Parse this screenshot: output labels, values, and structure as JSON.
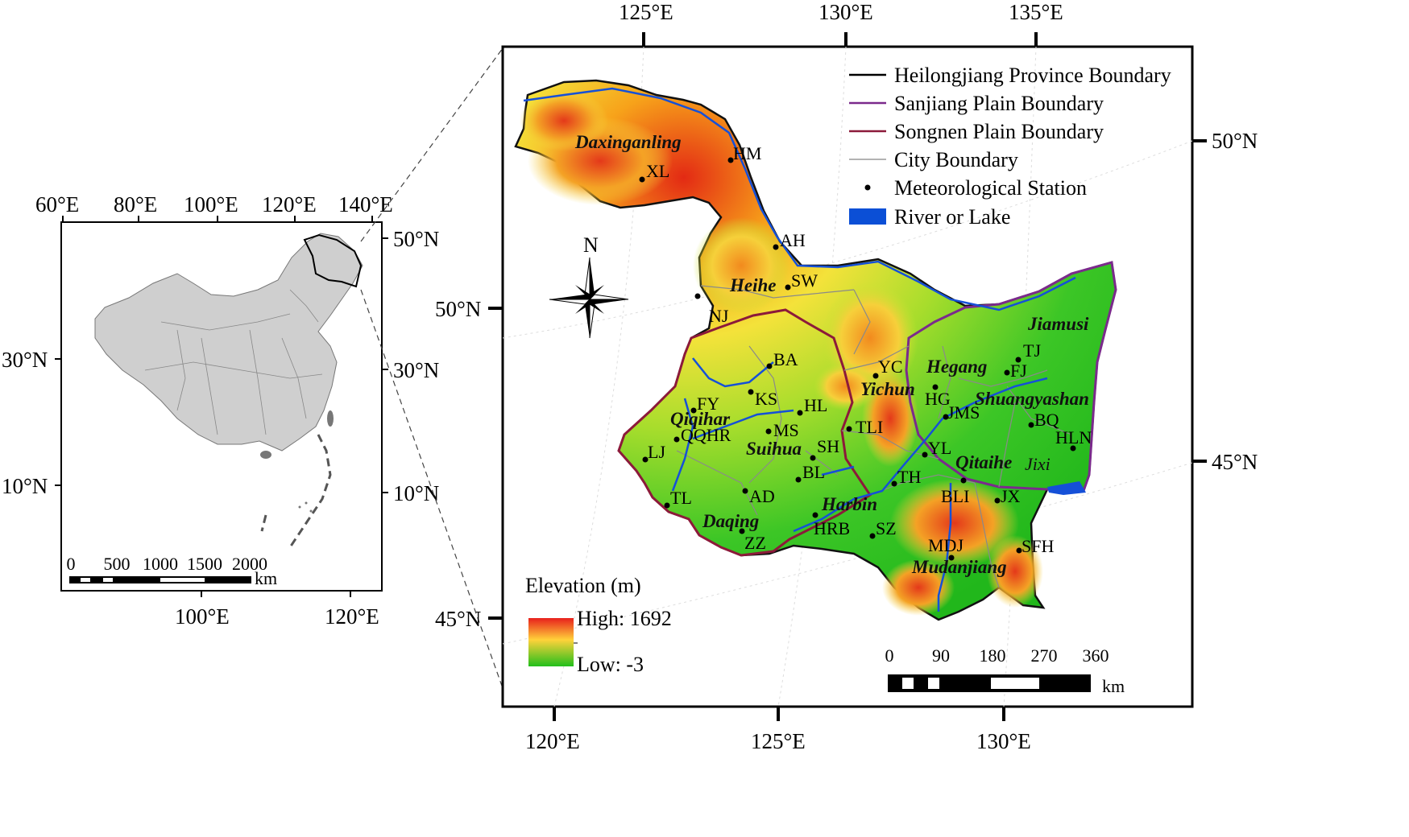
{
  "inset": {
    "top_ticks": [
      "60°E",
      "80°E",
      "100°E",
      "120°E",
      "140°E"
    ],
    "bottom_ticks": [
      "100°E",
      "120°E"
    ],
    "left_ticks": [
      "30°N",
      "10°N"
    ],
    "right_ticks": [
      "50°N",
      "30°N",
      "10°N"
    ],
    "scale_labels": [
      "0",
      "500",
      "1000",
      "1500",
      "2000"
    ],
    "scale_unit": "km"
  },
  "main": {
    "top_ticks": [
      "125°E",
      "130°E",
      "135°E"
    ],
    "bottom_ticks": [
      "120°E",
      "125°E",
      "130°E"
    ],
    "left_ticks": [
      "50°N",
      "45°N"
    ],
    "right_ticks": [
      "50°N",
      "45°N"
    ],
    "north_label": "N",
    "legend": [
      {
        "label": "Heilongjiang Province Boundary",
        "color": "#000000",
        "kind": "line"
      },
      {
        "label": "Sanjiang Plain Boundary",
        "color": "#7b2a8c",
        "kind": "line"
      },
      {
        "label": "Songnen Plain Boundary",
        "color": "#8c1a3a",
        "kind": "line"
      },
      {
        "label": "City Boundary",
        "color": "#9a9a9a",
        "kind": "line"
      },
      {
        "label": "Meteorological Station",
        "color": "#000000",
        "kind": "dot"
      },
      {
        "label": "River or Lake",
        "color": "#0b4fd6",
        "kind": "box"
      }
    ],
    "elevation": {
      "title": "Elevation (m)",
      "high": "High: 1692",
      "low": "Low: -3"
    },
    "scale_labels": [
      "0",
      "90",
      "180",
      "270",
      "360"
    ],
    "scale_unit": "km",
    "stations": [
      {
        "name": "XL"
      },
      {
        "name": "HM"
      },
      {
        "name": "AH"
      },
      {
        "name": "SW"
      },
      {
        "name": "NJ"
      },
      {
        "name": "BA"
      },
      {
        "name": "KS"
      },
      {
        "name": "FY"
      },
      {
        "name": "HL"
      },
      {
        "name": "QQHR"
      },
      {
        "name": "MS"
      },
      {
        "name": "LJ"
      },
      {
        "name": "SH"
      },
      {
        "name": "BL"
      },
      {
        "name": "AD"
      },
      {
        "name": "TL"
      },
      {
        "name": "ZZ"
      },
      {
        "name": "HRB"
      },
      {
        "name": "SZ"
      },
      {
        "name": "TH"
      },
      {
        "name": "TLI"
      },
      {
        "name": "YC"
      },
      {
        "name": "HG"
      },
      {
        "name": "JMS"
      },
      {
        "name": "FJ"
      },
      {
        "name": "TJ"
      },
      {
        "name": "BQ"
      },
      {
        "name": "HLN"
      },
      {
        "name": "YL"
      },
      {
        "name": "BLI"
      },
      {
        "name": "JX"
      },
      {
        "name": "MDJ"
      },
      {
        "name": "SFH"
      }
    ],
    "cities": [
      {
        "name": "Daxinganling"
      },
      {
        "name": "Heihe"
      },
      {
        "name": "Qiqihar"
      },
      {
        "name": "Suihua"
      },
      {
        "name": "Daqing"
      },
      {
        "name": "Harbin"
      },
      {
        "name": "Yichun"
      },
      {
        "name": "Hegang"
      },
      {
        "name": "Jiamusi"
      },
      {
        "name": "Shuangyashan"
      },
      {
        "name": "Qitaihe"
      },
      {
        "name": "Jixi"
      },
      {
        "name": "Mudanjiang"
      }
    ]
  }
}
